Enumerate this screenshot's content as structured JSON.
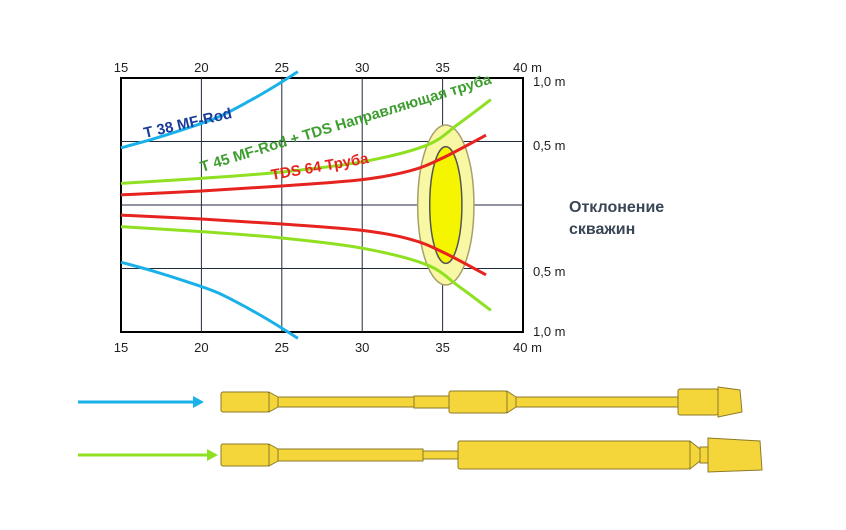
{
  "chart_data": {
    "type": "line",
    "title": "",
    "x_ticks": [
      "15",
      "20",
      "25",
      "30",
      "35",
      "40 m"
    ],
    "x_values": [
      15,
      20,
      25,
      30,
      35,
      40
    ],
    "y_tick_labels": [
      "1,0 m",
      "0,5 m",
      "0,5 m",
      "1,0 m"
    ],
    "y_tick_values": [
      1.0,
      0.5,
      -0.5,
      -1.0
    ],
    "xlim": [
      15,
      40
    ],
    "ylim": [
      -1.0,
      1.0
    ],
    "grid": true,
    "series": [
      {
        "name": "T 38 MF-Rod",
        "color": "#1ab1ea",
        "upper": [
          [
            15,
            0.45
          ],
          [
            17,
            0.52
          ],
          [
            19,
            0.6
          ],
          [
            21,
            0.69
          ],
          [
            23,
            0.82
          ],
          [
            24.5,
            0.93
          ],
          [
            26,
            1.05
          ]
        ],
        "lower": [
          [
            15,
            -0.45
          ],
          [
            17,
            -0.52
          ],
          [
            19,
            -0.6
          ],
          [
            21,
            -0.69
          ],
          [
            23,
            -0.82
          ],
          [
            24.5,
            -0.93
          ],
          [
            26,
            -1.05
          ]
        ]
      },
      {
        "name": "T 45 MF-Rod + TDS Направляющая труба",
        "color": "#8fe020",
        "upper": [
          [
            15,
            0.17
          ],
          [
            20,
            0.21
          ],
          [
            25,
            0.26
          ],
          [
            30,
            0.34
          ],
          [
            34,
            0.47
          ],
          [
            36,
            0.64
          ],
          [
            38,
            0.83
          ]
        ],
        "lower": [
          [
            15,
            -0.17
          ],
          [
            20,
            -0.21
          ],
          [
            25,
            -0.26
          ],
          [
            30,
            -0.34
          ],
          [
            34,
            -0.47
          ],
          [
            36,
            -0.64
          ],
          [
            38,
            -0.83
          ]
        ]
      },
      {
        "name": "TDS 64 Труба",
        "color": "#e6231e",
        "upper": [
          [
            15,
            0.08
          ],
          [
            20,
            0.11
          ],
          [
            25,
            0.15
          ],
          [
            30,
            0.2
          ],
          [
            33,
            0.27
          ],
          [
            35,
            0.37
          ],
          [
            37.7,
            0.55
          ]
        ],
        "lower": [
          [
            15,
            -0.08
          ],
          [
            20,
            -0.11
          ],
          [
            25,
            -0.15
          ],
          [
            30,
            -0.2
          ],
          [
            33,
            -0.27
          ],
          [
            35,
            -0.37
          ],
          [
            37.7,
            -0.55
          ]
        ]
      }
    ],
    "target_zone": {
      "center_x": 35.2,
      "center_y": 0.0,
      "outer_rx": 3.5,
      "outer_ry": 0.63,
      "inner_rx": 2.0,
      "inner_ry": 0.4,
      "outer_color": "#f8f7a3",
      "inner_color": "#f5f500",
      "stroke": "#a8a06a"
    }
  },
  "side_title": "Отклонение скважин",
  "tools": [
    {
      "name": "T 38 MF-Rod",
      "arrow_color": "#1ab1ea"
    },
    {
      "name": "T 45 MF-Rod + TDS Направляющая труба",
      "arrow_color": "#8fe020"
    }
  ],
  "colors": {
    "rod_fill": "#f5d63a",
    "rod_stroke": "#8c7a2a"
  }
}
